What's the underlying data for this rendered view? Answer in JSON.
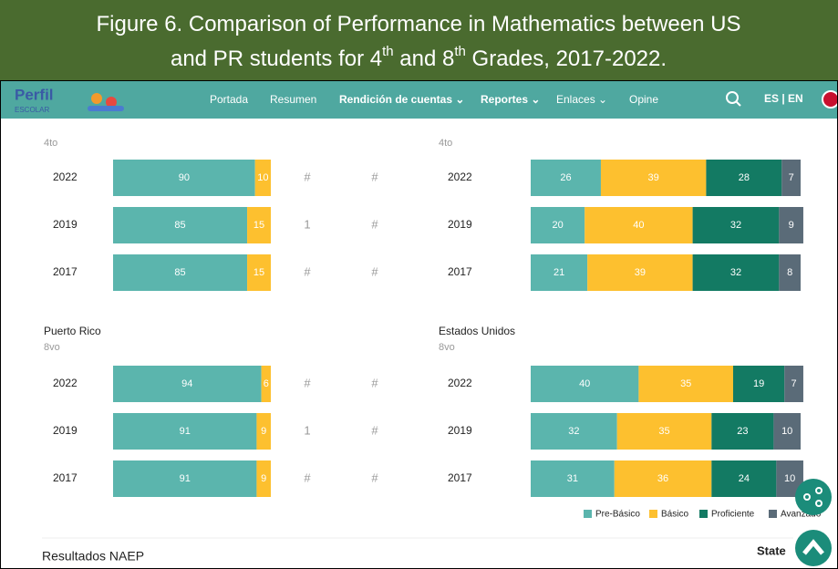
{
  "caption": [
    "Figure 6.  Comparison of Performance in Mathematics between US",
    "and PR students for 4",
    "th",
    " and 8",
    "th",
    " Grades, 2017-2022."
  ],
  "nav": {
    "logo": "Perfil",
    "logo_sub": "ESCOLAR",
    "items": [
      "Portada",
      "Resumen",
      "Rendición de cuentas ⌄",
      "Reportes ⌄",
      "Enlaces ⌄",
      "Opine"
    ],
    "lang": "ES | EN"
  },
  "legend": [
    {
      "name": "Pre-Básico",
      "color": "#5bb5ad"
    },
    {
      "name": "Básico",
      "color": "#fdc02f"
    },
    {
      "name": "Proficiente",
      "color": "#137a63"
    },
    {
      "name": "Avanzado",
      "color": "#5a6b78"
    }
  ],
  "sections": [
    {
      "left": {
        "grade": "4to",
        "rows": [
          {
            "year": "2022",
            "values": [
              90,
              10
            ],
            "cols": [
              "#",
              "#"
            ]
          },
          {
            "year": "2019",
            "values": [
              85,
              15
            ],
            "cols": [
              "1",
              "#"
            ]
          },
          {
            "year": "2017",
            "values": [
              85,
              15
            ],
            "cols": [
              "#",
              "#"
            ]
          }
        ]
      },
      "right": {
        "grade": "4to",
        "rows": [
          {
            "year": "2022",
            "values": [
              26,
              39,
              28,
              7
            ]
          },
          {
            "year": "2019",
            "values": [
              20,
              40,
              32,
              9
            ]
          },
          {
            "year": "2017",
            "values": [
              21,
              39,
              32,
              8
            ]
          }
        ]
      }
    },
    {
      "left": {
        "title": "Puerto Rico",
        "grade": "8vo",
        "rows": [
          {
            "year": "2022",
            "values": [
              94,
              6
            ],
            "cols": [
              "#",
              "#"
            ]
          },
          {
            "year": "2019",
            "values": [
              91,
              9
            ],
            "cols": [
              "1",
              "#"
            ]
          },
          {
            "year": "2017",
            "values": [
              91,
              9
            ],
            "cols": [
              "#",
              "#"
            ]
          }
        ]
      },
      "right": {
        "title": "Estados Unidos",
        "grade": "8vo",
        "rows": [
          {
            "year": "2022",
            "values": [
              40,
              35,
              19,
              7
            ]
          },
          {
            "year": "2019",
            "values": [
              32,
              35,
              23,
              10
            ]
          },
          {
            "year": "2017",
            "values": [
              31,
              36,
              24,
              10
            ]
          }
        ]
      }
    }
  ],
  "footer": {
    "title": "Resultados NAEP",
    "state": "State"
  }
}
